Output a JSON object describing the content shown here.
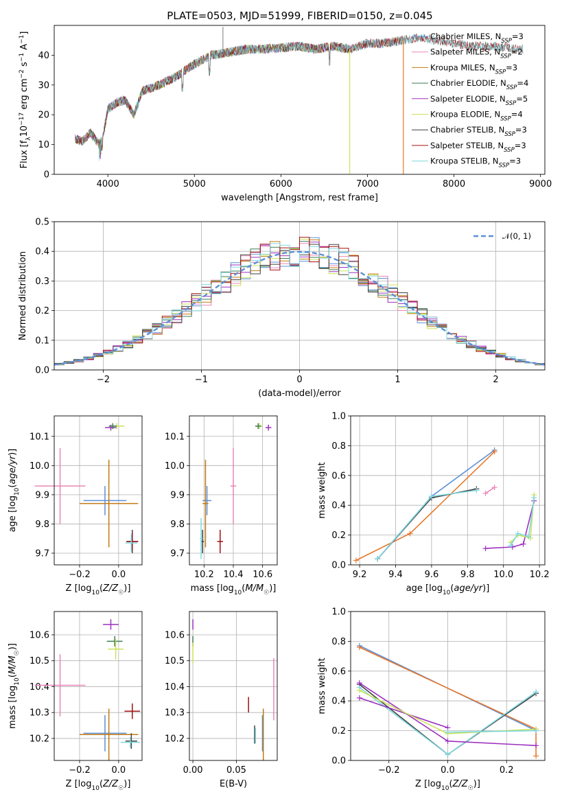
{
  "figure": {
    "title": "PLATE=0503, MJD=51999, FIBERID=0150, z=0.045"
  },
  "colors": {
    "Chabrier MILES": "#5b8fd6",
    "Salpeter MILES": "#e986b8",
    "Kroupa MILES": "#c07a10",
    "Chabrier ELODIE": "#3f7a55",
    "Salpeter ELODIE": "#9b30c0",
    "Kroupa ELODIE": "#cbe25a",
    "Chabrier STELIB": "#404040",
    "Salpeter STELIB": "#a01010",
    "Kroupa STELIB": "#7fd8e0",
    "orange": "#e8772a",
    "gaussian": "#5b8fd6",
    "grid": "#b0b0b0"
  },
  "chart_data": [
    {
      "id": "spectrum",
      "type": "line",
      "title": "PLATE=0503, MJD=51999, FIBERID=0150, z=0.045",
      "xlabel": "wavelength [Angstrom, rest frame]",
      "ylabel": "Flux [f_λ 10^-17 erg cm^-2 s^-1 A^-1]",
      "xlim": [
        3380,
        9050
      ],
      "ylim": [
        0,
        50
      ],
      "xticks": [
        4000,
        5000,
        6000,
        7000,
        8000,
        9000
      ],
      "yticks": [
        0,
        10,
        20,
        30,
        40
      ],
      "grid": false,
      "legend_position": "right",
      "legend": [
        {
          "base": "Chabrier MILES, N",
          "sub": "SSP",
          "tail": "=3"
        },
        {
          "base": "Salpeter MILES, N",
          "sub": "SSP",
          "tail": "=2"
        },
        {
          "base": "Kroupa MILES, N",
          "sub": "SSP",
          "tail": "=3"
        },
        {
          "base": "Chabrier ELODIE, N",
          "sub": "SSP",
          "tail": "=4"
        },
        {
          "base": "Salpeter ELODIE, N",
          "sub": "SSP",
          "tail": "=5"
        },
        {
          "base": "Kroupa ELODIE, N",
          "sub": "SSP",
          "tail": "=4"
        },
        {
          "base": "Chabrier STELIB, N",
          "sub": "SSP",
          "tail": "=3"
        },
        {
          "base": "Salpeter STELIB, N",
          "sub": "SSP",
          "tail": "=3"
        },
        {
          "base": "Kroupa STELIB, N",
          "sub": "SSP",
          "tail": "=3"
        }
      ],
      "continuum": [
        [
          3620,
          12
        ],
        [
          3700,
          11
        ],
        [
          3800,
          14
        ],
        [
          3900,
          10
        ],
        [
          3950,
          14
        ],
        [
          4000,
          22
        ],
        [
          4100,
          24
        ],
        [
          4200,
          25
        ],
        [
          4300,
          20
        ],
        [
          4400,
          28
        ],
        [
          4600,
          30
        ],
        [
          4800,
          33
        ],
        [
          5000,
          37
        ],
        [
          5200,
          40
        ],
        [
          5400,
          41
        ],
        [
          5600,
          42
        ],
        [
          5800,
          42
        ],
        [
          6000,
          42.5
        ],
        [
          6200,
          43
        ],
        [
          6400,
          42
        ],
        [
          6600,
          43
        ],
        [
          6800,
          42
        ],
        [
          7000,
          44
        ],
        [
          7200,
          44
        ],
        [
          7400,
          45
        ],
        [
          7600,
          46
        ],
        [
          7800,
          45
        ],
        [
          8000,
          44
        ],
        [
          8200,
          43
        ],
        [
          8500,
          43
        ],
        [
          8800,
          42
        ]
      ],
      "model_ranges": {
        "Chabrier MILES": [
          3620,
          7420
        ],
        "Salpeter MILES": [
          3620,
          7420
        ],
        "Kroupa MILES": [
          3620,
          7420
        ],
        "Chabrier ELODIE": [
          3620,
          6800
        ],
        "Salpeter ELODIE": [
          3620,
          6800
        ],
        "Kroupa ELODIE": [
          3620,
          6800
        ],
        "Chabrier STELIB": [
          3620,
          8800
        ],
        "Salpeter STELIB": [
          3620,
          8800
        ],
        "Kroupa STELIB": [
          3620,
          8800
        ]
      },
      "drop_lines": [
        {
          "x": 6795,
          "series": "Kroupa ELODIE"
        },
        {
          "x": 7415,
          "series": "Kroupa MILES"
        }
      ]
    },
    {
      "id": "residuals",
      "type": "histogram",
      "xlabel": "(data-model)/error",
      "ylabel": "Normed distribution",
      "xlim": [
        -2.5,
        2.5
      ],
      "ylim": [
        0,
        0.5
      ],
      "xticks": [
        -2,
        -1,
        0,
        1,
        2
      ],
      "yticks": [
        0.0,
        0.1,
        0.2,
        0.3,
        0.4,
        0.5
      ],
      "grid": true,
      "legend_position": "top-right",
      "legend": [
        {
          "label": "𝒩(0, 1)",
          "style": "dashed"
        }
      ],
      "bin_width": 0.1,
      "bin_start": -2.5,
      "gaussian": {
        "mu": 0,
        "sigma": 1
      }
    },
    {
      "id": "age_vs_Z",
      "type": "scatter-errorbar",
      "xlabel": "Z [log10(Z/Z☉)]",
      "ylabel": "age [log10(age/yr)]",
      "xlim": [
        -0.33,
        0.12
      ],
      "ylim": [
        9.66,
        10.17
      ],
      "xticks": [
        -0.2,
        0.0
      ],
      "yticks": [
        9.7,
        9.8,
        9.9,
        10.0,
        10.1
      ],
      "grid": true,
      "points": [
        {
          "s": "Salpeter MILES",
          "x": -0.3,
          "y": 9.93,
          "xerr": 0.13,
          "yerr": 0.13
        },
        {
          "s": "Chabrier MILES",
          "x": -0.07,
          "y": 9.88,
          "xerr": 0.11,
          "yerr": 0.05
        },
        {
          "s": "Kroupa MILES",
          "x": -0.05,
          "y": 9.87,
          "xerr": 0.15,
          "yerr": 0.15
        },
        {
          "s": "Salpeter ELODIE",
          "x": -0.04,
          "y": 10.13,
          "xerr": 0.03,
          "yerr": 0.01
        },
        {
          "s": "Kroupa ELODIE",
          "x": -0.01,
          "y": 10.135,
          "xerr": 0.04,
          "yerr": 0.01
        },
        {
          "s": "Chabrier ELODIE",
          "x": -0.03,
          "y": 10.135,
          "xerr": 0.02,
          "yerr": 0.01
        },
        {
          "s": "Chabrier STELIB",
          "x": 0.07,
          "y": 9.74,
          "xerr": 0.03,
          "yerr": 0.04
        },
        {
          "s": "Salpeter STELIB",
          "x": 0.07,
          "y": 9.74,
          "xerr": 0.03,
          "yerr": 0.03
        },
        {
          "s": "Kroupa STELIB",
          "x": 0.065,
          "y": 9.735,
          "xerr": 0.03,
          "yerr": 0.03
        }
      ]
    },
    {
      "id": "age_vs_mass",
      "type": "scatter-errorbar",
      "xlabel": "mass [log10(M/M☉)]",
      "ylabel": "",
      "xlim": [
        10.1,
        10.7
      ],
      "ylim": [
        9.66,
        10.17
      ],
      "xticks": [
        10.2,
        10.4,
        10.6
      ],
      "yticks": [
        9.7,
        9.8,
        9.9,
        10.0,
        10.1
      ],
      "grid": true,
      "points": [
        {
          "s": "Salpeter MILES",
          "x": 10.4,
          "y": 9.93,
          "xerr": 0.02,
          "yerr": 0.13
        },
        {
          "s": "Chabrier MILES",
          "x": 10.22,
          "y": 9.88,
          "xerr": 0.03,
          "yerr": 0.05
        },
        {
          "s": "Kroupa MILES",
          "x": 10.21,
          "y": 9.87,
          "xerr": 0.02,
          "yerr": 0.15
        },
        {
          "s": "Salpeter ELODIE",
          "x": 10.64,
          "y": 10.13,
          "xerr": 0.02,
          "yerr": 0.01
        },
        {
          "s": "Kroupa ELODIE",
          "x": 10.58,
          "y": 10.135,
          "xerr": 0.02,
          "yerr": 0.01
        },
        {
          "s": "Chabrier ELODIE",
          "x": 10.57,
          "y": 10.135,
          "xerr": 0.02,
          "yerr": 0.01
        },
        {
          "s": "Chabrier STELIB",
          "x": 10.19,
          "y": 9.74,
          "xerr": 0.01,
          "yerr": 0.04
        },
        {
          "s": "Salpeter STELIB",
          "x": 10.31,
          "y": 9.74,
          "xerr": 0.02,
          "yerr": 0.04
        },
        {
          "s": "Kroupa STELIB",
          "x": 10.18,
          "y": 9.75,
          "xerr": 0.01,
          "yerr": 0.07
        }
      ]
    },
    {
      "id": "weight_vs_age",
      "type": "line",
      "xlabel": "age [log10(age/yr)]",
      "ylabel": "mass weight",
      "xlim": [
        9.15,
        10.23
      ],
      "ylim": [
        0,
        1
      ],
      "xticks": [
        9.2,
        9.4,
        9.6,
        9.8,
        10.0,
        10.2
      ],
      "yticks": [
        0.0,
        0.2,
        0.4,
        0.6,
        0.8,
        1.0
      ],
      "grid": true,
      "series": [
        {
          "s": "Chabrier MILES",
          "points": [
            [
              9.3,
              0.04
            ],
            [
              9.6,
              0.46
            ],
            [
              9.95,
              0.77
            ]
          ]
        },
        {
          "s": "Kroupa MILES",
          "points": [
            [
              9.18,
              0.03
            ],
            [
              9.48,
              0.21
            ],
            [
              9.95,
              0.76
            ]
          ]
        },
        {
          "s": "Chabrier STELIB",
          "points": [
            [
              9.3,
              0.04
            ],
            [
              9.6,
              0.45
            ],
            [
              9.85,
              0.51
            ]
          ]
        },
        {
          "s": "Kroupa STELIB",
          "points": [
            [
              9.3,
              0.04
            ],
            [
              9.6,
              0.46
            ],
            [
              9.85,
              0.5
            ]
          ]
        },
        {
          "s": "Salpeter MILES",
          "points": [
            [
              9.9,
              0.48
            ],
            [
              9.95,
              0.52
            ]
          ]
        },
        {
          "s": "Salpeter ELODIE",
          "points": [
            [
              9.9,
              0.11
            ],
            [
              10.05,
              0.12
            ],
            [
              10.11,
              0.14
            ],
            [
              10.17,
              0.43
            ]
          ]
        },
        {
          "s": "Kroupa ELODIE",
          "points": [
            [
              10.04,
              0.15
            ],
            [
              10.08,
              0.2
            ],
            [
              10.15,
              0.18
            ],
            [
              10.17,
              0.47
            ]
          ]
        },
        {
          "s": "Kroupa STELIB",
          "points": [
            [
              10.04,
              0.13
            ],
            [
              10.08,
              0.21
            ],
            [
              10.14,
              0.19
            ],
            [
              10.17,
              0.45
            ]
          ]
        }
      ]
    },
    {
      "id": "mass_vs_Z",
      "type": "scatter-errorbar",
      "xlabel": "Z [log10(Z/Z☉)]",
      "ylabel": "mass [log10(M/M☉)]",
      "xlim": [
        -0.33,
        0.12
      ],
      "ylim": [
        10.115,
        10.69
      ],
      "xticks": [
        -0.2,
        0.0
      ],
      "yticks": [
        10.2,
        10.3,
        10.4,
        10.5,
        10.6
      ],
      "grid": true,
      "points": [
        {
          "s": "Salpeter MILES",
          "x": -0.3,
          "y": 10.405,
          "xerr": 0.13,
          "yerr": 0.12
        },
        {
          "s": "Chabrier MILES",
          "x": -0.07,
          "y": 10.22,
          "xerr": 0.11,
          "yerr": 0.07
        },
        {
          "s": "Kroupa MILES",
          "x": -0.05,
          "y": 10.215,
          "xerr": 0.15,
          "yerr": 0.1
        },
        {
          "s": "Salpeter ELODIE",
          "x": -0.04,
          "y": 10.64,
          "xerr": 0.04,
          "yerr": 0.02
        },
        {
          "s": "Chabrier ELODIE",
          "x": -0.02,
          "y": 10.575,
          "xerr": 0.04,
          "yerr": 0.02
        },
        {
          "s": "Kroupa ELODIE",
          "x": -0.015,
          "y": 10.545,
          "xerr": 0.04,
          "yerr": 0.04
        },
        {
          "s": "Salpeter STELIB",
          "x": 0.07,
          "y": 10.305,
          "xerr": 0.04,
          "yerr": 0.03
        },
        {
          "s": "Chabrier STELIB",
          "x": 0.065,
          "y": 10.19,
          "xerr": 0.03,
          "yerr": 0.03
        },
        {
          "s": "Kroupa STELIB",
          "x": 0.06,
          "y": 10.185,
          "xerr": 0.05,
          "yerr": 0.02
        }
      ]
    },
    {
      "id": "mass_vs_ebv",
      "type": "scatter-errorbar",
      "xlabel": "E(B-V)",
      "ylabel": "",
      "xlim": [
        -0.004,
        0.097
      ],
      "ylim": [
        10.115,
        10.69
      ],
      "xticks": [
        0.0,
        0.05
      ],
      "yticks": [
        10.2,
        10.3,
        10.4,
        10.5,
        10.6
      ],
      "grid": true,
      "points": [
        {
          "s": "Salpeter ELODIE",
          "x": 0.0,
          "y": 10.64,
          "xerr": 0.0,
          "yerr": 0.02
        },
        {
          "s": "Chabrier ELODIE",
          "x": 0.0,
          "y": 10.575,
          "xerr": 0.0,
          "yerr": 0.02
        },
        {
          "s": "Kroupa ELODIE",
          "x": 0.0,
          "y": 10.53,
          "xerr": 0.0,
          "yerr": 0.04
        },
        {
          "s": "Salpeter STELIB",
          "x": 0.064,
          "y": 10.33,
          "xerr": 0.0,
          "yerr": 0.03
        },
        {
          "s": "Chabrier STELIB",
          "x": 0.071,
          "y": 10.215,
          "xerr": 0.0,
          "yerr": 0.035
        },
        {
          "s": "Kroupa STELIB",
          "x": 0.072,
          "y": 10.21,
          "xerr": 0.0,
          "yerr": 0.03
        },
        {
          "s": "Chabrier MILES",
          "x": 0.08,
          "y": 10.22,
          "xerr": 0.0,
          "yerr": 0.07
        },
        {
          "s": "Kroupa MILES",
          "x": 0.081,
          "y": 10.215,
          "xerr": 0.0,
          "yerr": 0.1
        },
        {
          "s": "Salpeter MILES",
          "x": 0.093,
          "y": 10.39,
          "xerr": 0.0,
          "yerr": 0.12
        }
      ]
    },
    {
      "id": "weight_vs_Z",
      "type": "line",
      "xlabel": "Z [log10(Z/Z☉)]",
      "ylabel": "mass weight",
      "xlim": [
        -0.33,
        0.33
      ],
      "ylim": [
        0,
        1
      ],
      "xticks": [
        -0.2,
        0.0,
        0.2
      ],
      "yticks": [
        0.0,
        0.2,
        0.4,
        0.6,
        0.8,
        1.0
      ],
      "grid": true,
      "series": [
        {
          "s": "Chabrier MILES",
          "points": [
            [
              -0.3,
              0.77
            ],
            [
              0.3,
              0.2
            ]
          ]
        },
        {
          "s": "Kroupa MILES",
          "points": [
            [
              -0.3,
              0.76
            ],
            [
              0.3,
              0.21
            ],
            [
              0.3,
              0.03
            ]
          ]
        },
        {
          "s": "Chabrier STELIB",
          "points": [
            [
              -0.3,
              0.51
            ],
            [
              0.0,
              0.04
            ],
            [
              0.3,
              0.45
            ]
          ]
        },
        {
          "s": "Kroupa STELIB",
          "points": [
            [
              -0.3,
              0.49
            ],
            [
              0.0,
              0.04
            ],
            [
              0.3,
              0.46
            ]
          ]
        },
        {
          "s": "Salpeter ELODIE",
          "points": [
            [
              -0.3,
              0.42
            ],
            [
              0.0,
              0.22
            ]
          ]
        },
        {
          "s": "Salpeter ELODIE",
          "points": [
            [
              -0.3,
              0.52
            ],
            [
              0.0,
              0.13
            ],
            [
              0.3,
              0.1
            ]
          ]
        },
        {
          "s": "Kroupa ELODIE",
          "points": [
            [
              -0.3,
              0.47
            ],
            [
              0.0,
              0.18
            ],
            [
              0.3,
              0.21
            ]
          ]
        },
        {
          "s": "Kroupa STELIB",
          "points": [
            [
              0.0,
              0.19
            ],
            [
              0.3,
              0.2
            ]
          ]
        }
      ]
    }
  ]
}
